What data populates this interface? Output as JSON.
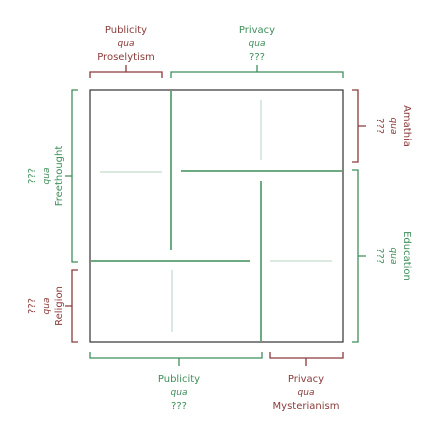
{
  "colors": {
    "green": "#3f8f5a",
    "red": "#8b3a3a",
    "faint": "#cfe3d5",
    "frame": "#333333"
  },
  "top_left": {
    "title": "Publicity",
    "qua": "qua",
    "sub": "Proselytism"
  },
  "top_right": {
    "title": "Privacy",
    "qua": "qua",
    "sub": "???"
  },
  "bottom_left": {
    "title": "Publicity",
    "qua": "qua",
    "sub": "???"
  },
  "bottom_right": {
    "title": "Privacy",
    "qua": "qua",
    "sub": "Mysterianism"
  },
  "left_top": {
    "title": "Freethought",
    "qua": "qua",
    "sub": "???"
  },
  "left_bottom": {
    "title": "Religion",
    "qua": "qua",
    "sub": "???"
  },
  "right_top": {
    "title": "Amathia",
    "qua": "qua",
    "sub": "???"
  },
  "right_bottom": {
    "title": "Education",
    "qua": "qua",
    "sub": "???"
  }
}
